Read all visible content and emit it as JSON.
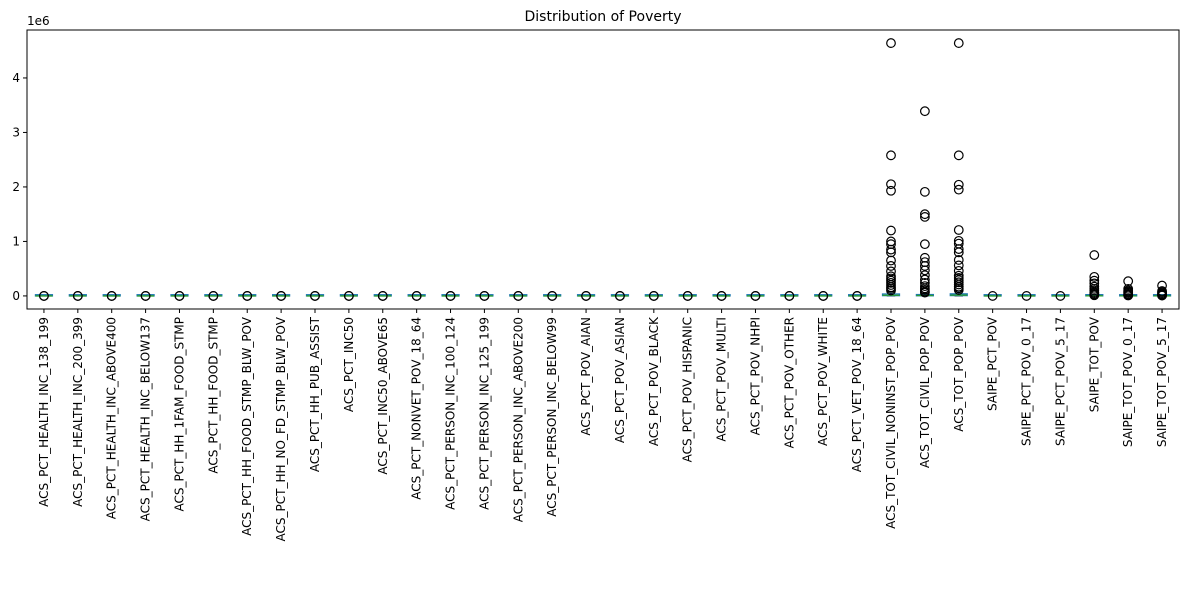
{
  "chart_data": {
    "type": "boxplot",
    "title": "Distribution of Poverty",
    "xlabel": "",
    "ylabel": "",
    "y_scale_label": "1e6",
    "y_ticks": [
      0,
      1,
      2,
      3,
      4
    ],
    "ylim": [
      -0.24,
      4.88
    ],
    "grid": false,
    "colors": {
      "box": "#1f77b4",
      "median": "#2ca02c",
      "flier": "#000000"
    },
    "categories": [
      "ACS_PCT_HEALTH_INC_138_199",
      "ACS_PCT_HEALTH_INC_200_399",
      "ACS_PCT_HEALTH_INC_ABOVE400",
      "ACS_PCT_HEALTH_INC_BELOW137",
      "ACS_PCT_HH_1FAM_FOOD_STMP",
      "ACS_PCT_HH_FOOD_STMP",
      "ACS_PCT_HH_FOOD_STMP_BLW_POV",
      "ACS_PCT_HH_NO_FD_STMP_BLW_POV",
      "ACS_PCT_HH_PUB_ASSIST",
      "ACS_PCT_INC50",
      "ACS_PCT_INC50_ABOVE65",
      "ACS_PCT_NONVET_POV_18_64",
      "ACS_PCT_PERSON_INC_100_124",
      "ACS_PCT_PERSON_INC_125_199",
      "ACS_PCT_PERSON_INC_ABOVE200",
      "ACS_PCT_PERSON_INC_BELOW99",
      "ACS_PCT_POV_AIAN",
      "ACS_PCT_POV_ASIAN",
      "ACS_PCT_POV_BLACK",
      "ACS_PCT_POV_HISPANIC",
      "ACS_PCT_POV_MULTI",
      "ACS_PCT_POV_NHPI",
      "ACS_PCT_POV_OTHER",
      "ACS_PCT_POV_WHITE",
      "ACS_PCT_VET_POV_18_64",
      "ACS_TOT_CIVIL_NONINST_POP_POV",
      "ACS_TOT_CIVIL_POP_POV",
      "ACS_TOT_POP_POV",
      "SAIPE_PCT_POV",
      "SAIPE_PCT_POV_0_17",
      "SAIPE_PCT_POV_5_17",
      "SAIPE_TOT_POV",
      "SAIPE_TOT_POV_0_17",
      "SAIPE_TOT_POV_5_17"
    ],
    "boxes": [
      {
        "q1": 0,
        "median": 0,
        "q3": 0,
        "whisker_low": 0,
        "whisker_high": 0,
        "fliers": [
          5e-05,
          0.0001
        ]
      },
      {
        "q1": 0,
        "median": 0,
        "q3": 0,
        "whisker_low": 0,
        "whisker_high": 0,
        "fliers": [
          5e-05,
          0.0001
        ]
      },
      {
        "q1": 0,
        "median": 0,
        "q3": 0,
        "whisker_low": 0,
        "whisker_high": 0,
        "fliers": [
          5e-05,
          0.0001
        ]
      },
      {
        "q1": 0,
        "median": 0,
        "q3": 0,
        "whisker_low": 0,
        "whisker_high": 0,
        "fliers": [
          5e-05,
          0.0001
        ]
      },
      {
        "q1": 0,
        "median": 0,
        "q3": 0,
        "whisker_low": 0,
        "whisker_high": 0,
        "fliers": [
          5e-05,
          0.0001
        ]
      },
      {
        "q1": 0,
        "median": 0,
        "q3": 0,
        "whisker_low": 0,
        "whisker_high": 0,
        "fliers": [
          5e-05,
          0.0001
        ]
      },
      {
        "q1": 0,
        "median": 0,
        "q3": 0,
        "whisker_low": 0,
        "whisker_high": 0,
        "fliers": [
          5e-05,
          0.0001
        ]
      },
      {
        "q1": 0,
        "median": 0,
        "q3": 0,
        "whisker_low": 0,
        "whisker_high": 0,
        "fliers": [
          5e-05,
          0.0001
        ]
      },
      {
        "q1": 0,
        "median": 0,
        "q3": 0,
        "whisker_low": 0,
        "whisker_high": 0,
        "fliers": [
          5e-05,
          0.0001
        ]
      },
      {
        "q1": 0,
        "median": 0,
        "q3": 0,
        "whisker_low": 0,
        "whisker_high": 0,
        "fliers": [
          5e-05,
          0.0001
        ]
      },
      {
        "q1": 0,
        "median": 0,
        "q3": 0,
        "whisker_low": 0,
        "whisker_high": 0,
        "fliers": [
          5e-05,
          0.0001
        ]
      },
      {
        "q1": 0,
        "median": 0,
        "q3": 0,
        "whisker_low": 0,
        "whisker_high": 0,
        "fliers": [
          5e-05,
          0.0001
        ]
      },
      {
        "q1": 0,
        "median": 0,
        "q3": 0,
        "whisker_low": 0,
        "whisker_high": 0,
        "fliers": [
          5e-05,
          0.0001
        ]
      },
      {
        "q1": 0,
        "median": 0,
        "q3": 0,
        "whisker_low": 0,
        "whisker_high": 0,
        "fliers": [
          5e-05,
          0.0001
        ]
      },
      {
        "q1": 0,
        "median": 0,
        "q3": 0,
        "whisker_low": 0,
        "whisker_high": 0,
        "fliers": [
          5e-05,
          0.0001
        ]
      },
      {
        "q1": 0,
        "median": 0,
        "q3": 0,
        "whisker_low": 0,
        "whisker_high": 0,
        "fliers": [
          5e-05,
          0.0001
        ]
      },
      {
        "q1": 0,
        "median": 0,
        "q3": 0,
        "whisker_low": 0,
        "whisker_high": 0,
        "fliers": [
          5e-05,
          0.0001
        ]
      },
      {
        "q1": 0,
        "median": 0,
        "q3": 0,
        "whisker_low": 0,
        "whisker_high": 0,
        "fliers": [
          5e-05,
          0.0001
        ]
      },
      {
        "q1": 0,
        "median": 0,
        "q3": 0,
        "whisker_low": 0,
        "whisker_high": 0,
        "fliers": [
          5e-05,
          0.0001
        ]
      },
      {
        "q1": 0,
        "median": 0,
        "q3": 0,
        "whisker_low": 0,
        "whisker_high": 0,
        "fliers": [
          5e-05,
          0.0001
        ]
      },
      {
        "q1": 0,
        "median": 0,
        "q3": 0,
        "whisker_low": 0,
        "whisker_high": 0,
        "fliers": [
          5e-05,
          0.0001
        ]
      },
      {
        "q1": 0,
        "median": 0,
        "q3": 0,
        "whisker_low": 0,
        "whisker_high": 0,
        "fliers": [
          5e-05,
          0.0001
        ]
      },
      {
        "q1": 0,
        "median": 0,
        "q3": 0,
        "whisker_low": 0,
        "whisker_high": 0,
        "fliers": [
          5e-05,
          0.0001
        ]
      },
      {
        "q1": 0,
        "median": 0,
        "q3": 0,
        "whisker_low": 0,
        "whisker_high": 0,
        "fliers": [
          5e-05,
          0.0001
        ]
      },
      {
        "q1": 0,
        "median": 0,
        "q3": 0,
        "whisker_low": 0,
        "whisker_high": 0,
        "fliers": [
          5e-05,
          0.0001
        ]
      },
      {
        "q1": 0.005,
        "median": 0.012,
        "q3": 0.035,
        "whisker_low": 0,
        "whisker_high": 0.08,
        "fliers": [
          0.1,
          0.13,
          0.16,
          0.2,
          0.24,
          0.28,
          0.32,
          0.36,
          0.45,
          0.55,
          0.65,
          0.8,
          0.85,
          0.95,
          1.0,
          1.2,
          1.93,
          2.05,
          2.58,
          4.64
        ]
      },
      {
        "q1": 0.003,
        "median": 0.008,
        "q3": 0.022,
        "whisker_low": 0,
        "whisker_high": 0.05,
        "fliers": [
          0.06,
          0.08,
          0.11,
          0.14,
          0.18,
          0.24,
          0.3,
          0.38,
          0.47,
          0.55,
          0.62,
          0.7,
          0.95,
          1.45,
          1.5,
          1.91,
          3.39
        ]
      },
      {
        "q1": 0.006,
        "median": 0.014,
        "q3": 0.038,
        "whisker_low": 0,
        "whisker_high": 0.09,
        "fliers": [
          0.11,
          0.14,
          0.17,
          0.21,
          0.25,
          0.29,
          0.33,
          0.37,
          0.46,
          0.56,
          0.66,
          0.8,
          0.86,
          0.96,
          1.01,
          1.21,
          1.95,
          2.04,
          2.58,
          4.64
        ]
      },
      {
        "q1": 0,
        "median": 0,
        "q3": 0,
        "whisker_low": 0,
        "whisker_high": 0,
        "fliers": [
          5e-05
        ]
      },
      {
        "q1": 0,
        "median": 0,
        "q3": 0,
        "whisker_low": 0,
        "whisker_high": 0,
        "fliers": [
          5e-05
        ]
      },
      {
        "q1": 0,
        "median": 0,
        "q3": 0,
        "whisker_low": 0,
        "whisker_high": 0,
        "fliers": [
          5e-05
        ]
      },
      {
        "q1": 0.001,
        "median": 0.002,
        "q3": 0.004,
        "whisker_low": 0,
        "whisker_high": 0.009,
        "fliers": [
          0.012,
          0.02,
          0.03,
          0.05,
          0.07,
          0.1,
          0.13,
          0.17,
          0.23,
          0.28,
          0.35,
          0.75
        ]
      },
      {
        "q1": 0.0005,
        "median": 0.001,
        "q3": 0.002,
        "whisker_low": 0,
        "whisker_high": 0.005,
        "fliers": [
          0.008,
          0.015,
          0.025,
          0.04,
          0.06,
          0.08,
          0.1,
          0.13,
          0.27
        ]
      },
      {
        "q1": 0.0004,
        "median": 0.0008,
        "q3": 0.0016,
        "whisker_low": 0,
        "whisker_high": 0.004,
        "fliers": [
          0.006,
          0.012,
          0.02,
          0.03,
          0.05,
          0.07,
          0.09,
          0.19
        ]
      }
    ]
  }
}
